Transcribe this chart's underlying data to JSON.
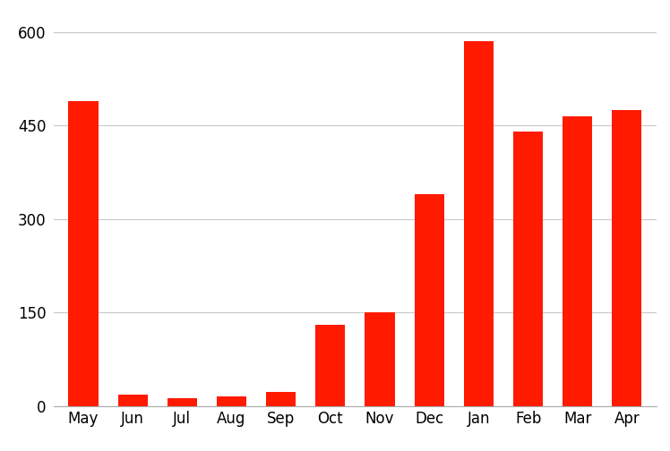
{
  "categories": [
    "May",
    "Jun",
    "Jul",
    "Aug",
    "Sep",
    "Oct",
    "Nov",
    "Dec",
    "Jan",
    "Feb",
    "Mar",
    "Apr"
  ],
  "values": [
    490,
    18,
    12,
    15,
    22,
    130,
    150,
    340,
    585,
    440,
    465,
    475
  ],
  "bar_color": "#ff1a00",
  "ylim": [
    0,
    630
  ],
  "yticks": [
    0,
    150,
    300,
    450,
    600
  ],
  "grid_color": "#c8c8c8",
  "background_color": "#ffffff",
  "tick_fontsize": 12,
  "bar_width": 0.6,
  "figsize": [
    7.48,
    5.04
  ],
  "dpi": 100
}
